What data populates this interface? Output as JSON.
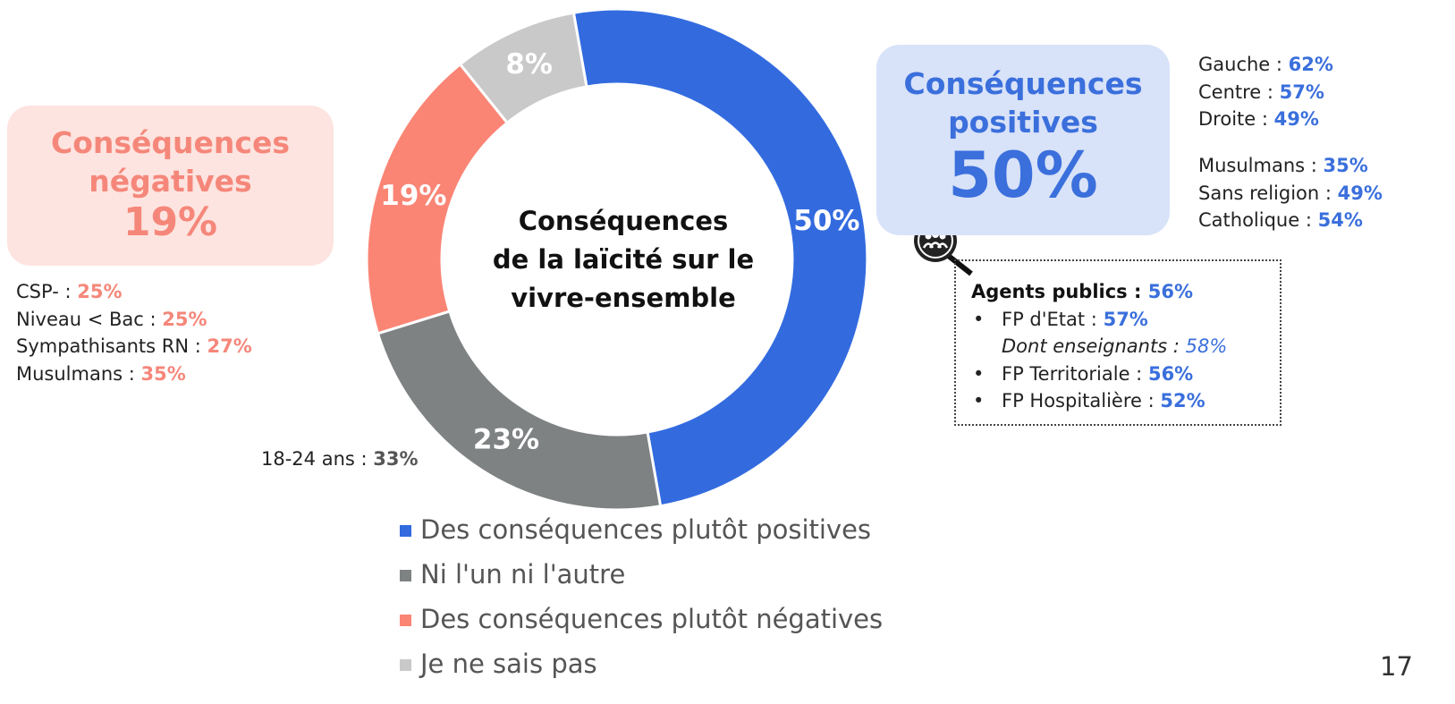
{
  "chart_data": {
    "type": "donut",
    "title": "Conséquences\nde la laïcité sur le\nvivre-ensemble",
    "categories": [
      "Des conséquences plutôt positives",
      "Ni l'un ni l'autre",
      "Des conséquences plutôt négatives",
      "Je ne sais pas"
    ],
    "values": [
      50,
      23,
      19,
      8
    ],
    "value_labels": [
      "50%",
      "23%",
      "19%",
      "8%"
    ],
    "colors": [
      "#336bdf",
      "#7f8283",
      "#fa8575",
      "#c9c9c9"
    ]
  },
  "negative_box": {
    "title": "Conséquences négatives",
    "value": "19%"
  },
  "positive_box": {
    "title": "Conséquences positives",
    "value": "50%"
  },
  "negative_details": [
    {
      "label": "CSP- :",
      "value": "25%"
    },
    {
      "label": "Niveau < Bac :",
      "value": "25%"
    },
    {
      "label": "Sympathisants RN :",
      "value": "27%"
    },
    {
      "label": "Musulmans :",
      "value": "35%"
    }
  ],
  "age_detail": {
    "label": "18-24 ans :",
    "value": "33%"
  },
  "positive_politics": [
    {
      "label": "Gauche :",
      "value": "62%"
    },
    {
      "label": "Centre :",
      "value": "57%"
    },
    {
      "label": "Droite :",
      "value": "49%"
    }
  ],
  "positive_religion": [
    {
      "label": "Musulmans :",
      "value": "35%"
    },
    {
      "label": "Sans religion :",
      "value": "49%"
    },
    {
      "label": "Catholique :",
      "value": "54%"
    }
  ],
  "agents": {
    "label": "Agents publics :",
    "value": "56%",
    "items": [
      {
        "label": "FP d'Etat :",
        "value": "57%",
        "sub": {
          "label": "Dont enseignants :",
          "value": "58%"
        }
      },
      {
        "label": "FP Territoriale :",
        "value": "56%"
      },
      {
        "label": "FP Hospitalière :",
        "value": "52%"
      }
    ]
  },
  "page_number": "17"
}
